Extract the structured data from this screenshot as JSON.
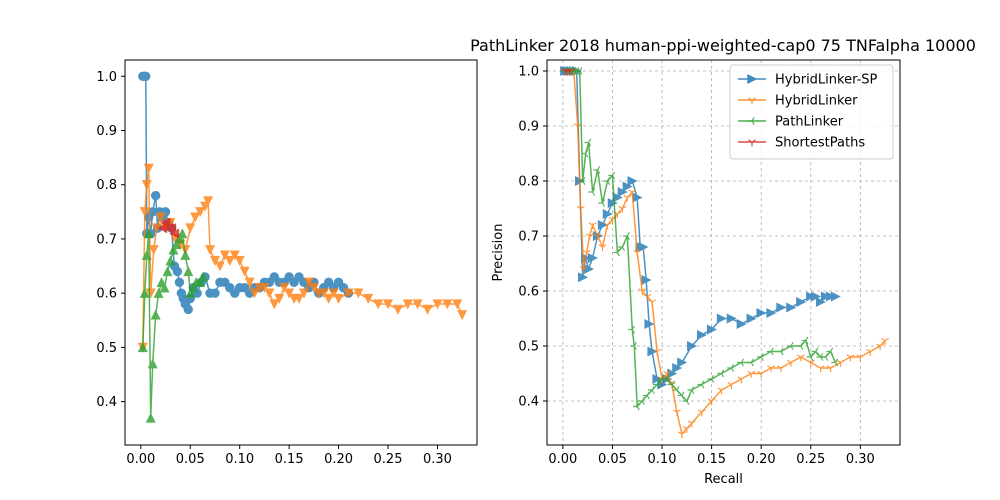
{
  "figure": {
    "title": "PathLinker 2018 human-ppi-weighted-cap0 75 TNFalpha 10000"
  },
  "chart_data": [
    {
      "type": "line",
      "title": "",
      "xlabel": "",
      "ylabel": "",
      "xlim": [
        -0.016,
        0.34
      ],
      "ylim": [
        0.32,
        1.03
      ],
      "xticks": [
        "0.00",
        "0.05",
        "0.10",
        "0.15",
        "0.20",
        "0.25",
        "0.30"
      ],
      "xtick_values": [
        0,
        0.05,
        0.1,
        0.15,
        0.2,
        0.25,
        0.3
      ],
      "yticks": [
        "0.4",
        "0.5",
        "0.6",
        "0.7",
        "0.8",
        "0.9",
        "1.0"
      ],
      "ytick_values": [
        0.4,
        0.5,
        0.6,
        0.7,
        0.8,
        0.9,
        1.0
      ],
      "grid": false,
      "legend": "none",
      "series": [
        {
          "color": "#1f77b4",
          "marker": "circle",
          "x": [
            0.002,
            0.004,
            0.005,
            0.006,
            0.008,
            0.01,
            0.012,
            0.015,
            0.017,
            0.019,
            0.022,
            0.025,
            0.028,
            0.031,
            0.034,
            0.037,
            0.039,
            0.041,
            0.043,
            0.045,
            0.048,
            0.05,
            0.053,
            0.057,
            0.061,
            0.065,
            0.07,
            0.075,
            0.08,
            0.085,
            0.09,
            0.095,
            0.1,
            0.105,
            0.11,
            0.115,
            0.12,
            0.125,
            0.13,
            0.135,
            0.14,
            0.145,
            0.15,
            0.155,
            0.16,
            0.165,
            0.17,
            0.175,
            0.18,
            0.185,
            0.19,
            0.195,
            0.2,
            0.205,
            0.21
          ],
          "y": [
            1.0,
            1.0,
            1.0,
            0.71,
            0.74,
            0.71,
            0.75,
            0.78,
            0.72,
            0.75,
            0.74,
            0.75,
            0.73,
            0.72,
            0.65,
            0.64,
            0.62,
            0.6,
            0.59,
            0.58,
            0.57,
            0.59,
            0.61,
            0.6,
            0.62,
            0.63,
            0.6,
            0.6,
            0.62,
            0.62,
            0.61,
            0.6,
            0.61,
            0.61,
            0.6,
            0.61,
            0.61,
            0.62,
            0.62,
            0.63,
            0.62,
            0.62,
            0.63,
            0.62,
            0.63,
            0.62,
            0.61,
            0.62,
            0.6,
            0.61,
            0.62,
            0.61,
            0.62,
            0.61,
            0.6
          ]
        },
        {
          "color": "#ff7f0e",
          "marker": "triangle_down",
          "x": [
            0.002,
            0.004,
            0.006,
            0.008,
            0.01,
            0.013,
            0.016,
            0.02,
            0.025,
            0.03,
            0.035,
            0.04,
            0.045,
            0.05,
            0.055,
            0.06,
            0.065,
            0.068,
            0.07,
            0.075,
            0.08,
            0.085,
            0.09,
            0.095,
            0.1,
            0.105,
            0.11,
            0.115,
            0.12,
            0.125,
            0.13,
            0.135,
            0.14,
            0.145,
            0.15,
            0.155,
            0.16,
            0.165,
            0.17,
            0.175,
            0.18,
            0.185,
            0.19,
            0.195,
            0.2,
            0.21,
            0.22,
            0.23,
            0.24,
            0.25,
            0.26,
            0.27,
            0.28,
            0.29,
            0.3,
            0.31,
            0.32,
            0.325
          ],
          "y": [
            0.5,
            0.75,
            0.8,
            0.83,
            0.6,
            0.68,
            0.72,
            0.74,
            0.72,
            0.73,
            0.7,
            0.69,
            0.68,
            0.72,
            0.74,
            0.75,
            0.76,
            0.77,
            0.68,
            0.66,
            0.65,
            0.67,
            0.66,
            0.67,
            0.66,
            0.64,
            0.62,
            0.6,
            0.61,
            0.61,
            0.6,
            0.58,
            0.59,
            0.61,
            0.6,
            0.59,
            0.59,
            0.6,
            0.62,
            0.61,
            0.6,
            0.6,
            0.59,
            0.6,
            0.59,
            0.6,
            0.6,
            0.59,
            0.58,
            0.58,
            0.57,
            0.58,
            0.58,
            0.57,
            0.58,
            0.58,
            0.58,
            0.56
          ]
        },
        {
          "color": "#2ca02c",
          "marker": "triangle_up",
          "x": [
            0.002,
            0.004,
            0.006,
            0.008,
            0.01,
            0.012,
            0.015,
            0.018,
            0.021,
            0.024,
            0.027,
            0.03,
            0.033,
            0.036,
            0.039,
            0.042,
            0.045,
            0.048,
            0.05,
            0.053,
            0.056,
            0.06,
            0.063
          ],
          "y": [
            0.5,
            0.6,
            0.67,
            0.71,
            0.37,
            0.47,
            0.56,
            0.6,
            0.62,
            0.61,
            0.64,
            0.66,
            0.68,
            0.69,
            0.7,
            0.71,
            0.67,
            0.64,
            0.6,
            0.61,
            0.62,
            0.62,
            0.63
          ]
        },
        {
          "color": "#d62728",
          "marker": "triangle_left",
          "x": [
            0.022,
            0.025,
            0.028,
            0.031,
            0.034
          ],
          "y": [
            0.72,
            0.73,
            0.72,
            0.72,
            0.71
          ]
        }
      ]
    },
    {
      "type": "line",
      "title": "",
      "xlabel": "Recall",
      "ylabel": "Precision",
      "xlim": [
        -0.016,
        0.34
      ],
      "ylim": [
        0.32,
        1.02
      ],
      "xticks": [
        "0.00",
        "0.05",
        "0.10",
        "0.15",
        "0.20",
        "0.25",
        "0.30"
      ],
      "xtick_values": [
        0,
        0.05,
        0.1,
        0.15,
        0.2,
        0.25,
        0.3
      ],
      "yticks": [
        "0.4",
        "0.5",
        "0.6",
        "0.7",
        "0.8",
        "0.9",
        "1.0"
      ],
      "ytick_values": [
        0.4,
        0.5,
        0.6,
        0.7,
        0.8,
        0.9,
        1.0
      ],
      "grid": true,
      "legend": "top-right",
      "series": [
        {
          "name": "HybridLinker-SP",
          "color": "#1f77b4",
          "marker": "triangle_right",
          "x": [
            0.002,
            0.005,
            0.008,
            0.011,
            0.014,
            0.017,
            0.02,
            0.023,
            0.026,
            0.03,
            0.035,
            0.04,
            0.045,
            0.05,
            0.055,
            0.06,
            0.065,
            0.07,
            0.075,
            0.078,
            0.081,
            0.084,
            0.087,
            0.09,
            0.095,
            0.1,
            0.105,
            0.11,
            0.115,
            0.12,
            0.13,
            0.14,
            0.15,
            0.16,
            0.17,
            0.18,
            0.19,
            0.2,
            0.21,
            0.22,
            0.23,
            0.24,
            0.25,
            0.255,
            0.26,
            0.265,
            0.27,
            0.275
          ],
          "y": [
            1.0,
            1.0,
            1.0,
            1.0,
            1.0,
            0.8,
            0.625,
            0.66,
            0.64,
            0.66,
            0.7,
            0.72,
            0.74,
            0.76,
            0.77,
            0.78,
            0.79,
            0.8,
            0.77,
            0.68,
            0.68,
            0.62,
            0.54,
            0.49,
            0.44,
            0.43,
            0.44,
            0.45,
            0.46,
            0.47,
            0.5,
            0.52,
            0.53,
            0.55,
            0.55,
            0.54,
            0.55,
            0.56,
            0.56,
            0.57,
            0.57,
            0.58,
            0.59,
            0.59,
            0.58,
            0.59,
            0.59,
            0.59
          ]
        },
        {
          "name": "HybridLinker",
          "color": "#ff7f0e",
          "marker": "tri_down",
          "x": [
            0.002,
            0.005,
            0.008,
            0.011,
            0.015,
            0.018,
            0.021,
            0.024,
            0.027,
            0.03,
            0.035,
            0.04,
            0.045,
            0.05,
            0.055,
            0.06,
            0.065,
            0.07,
            0.075,
            0.08,
            0.085,
            0.09,
            0.095,
            0.1,
            0.105,
            0.11,
            0.115,
            0.12,
            0.125,
            0.13,
            0.14,
            0.15,
            0.16,
            0.17,
            0.18,
            0.19,
            0.2,
            0.21,
            0.22,
            0.23,
            0.24,
            0.25,
            0.26,
            0.27,
            0.28,
            0.29,
            0.3,
            0.31,
            0.32,
            0.325
          ],
          "y": [
            1.0,
            1.0,
            1.0,
            1.0,
            0.9,
            0.75,
            0.64,
            0.67,
            0.7,
            0.72,
            0.7,
            0.68,
            0.72,
            0.73,
            0.74,
            0.75,
            0.77,
            0.78,
            0.67,
            0.6,
            0.59,
            0.58,
            0.49,
            0.44,
            0.45,
            0.43,
            0.38,
            0.34,
            0.35,
            0.36,
            0.38,
            0.4,
            0.42,
            0.43,
            0.44,
            0.45,
            0.45,
            0.46,
            0.46,
            0.47,
            0.48,
            0.47,
            0.46,
            0.46,
            0.47,
            0.48,
            0.48,
            0.49,
            0.5,
            0.51
          ]
        },
        {
          "name": "PathLinker",
          "color": "#2ca02c",
          "marker": "tri_left",
          "x": [
            0.002,
            0.005,
            0.008,
            0.011,
            0.014,
            0.017,
            0.02,
            0.023,
            0.026,
            0.03,
            0.035,
            0.04,
            0.045,
            0.05,
            0.055,
            0.06,
            0.065,
            0.07,
            0.072,
            0.075,
            0.08,
            0.085,
            0.09,
            0.095,
            0.1,
            0.105,
            0.11,
            0.115,
            0.12,
            0.125,
            0.13,
            0.14,
            0.15,
            0.16,
            0.17,
            0.18,
            0.19,
            0.2,
            0.21,
            0.22,
            0.23,
            0.24,
            0.245,
            0.25,
            0.255,
            0.26,
            0.265,
            0.27,
            0.275
          ],
          "y": [
            1.0,
            1.0,
            1.0,
            1.0,
            1.0,
            1.0,
            0.8,
            0.85,
            0.87,
            0.78,
            0.82,
            0.76,
            0.8,
            0.81,
            0.67,
            0.68,
            0.7,
            0.53,
            0.5,
            0.39,
            0.4,
            0.41,
            0.42,
            0.43,
            0.44,
            0.44,
            0.43,
            0.42,
            0.41,
            0.4,
            0.42,
            0.43,
            0.44,
            0.45,
            0.46,
            0.47,
            0.47,
            0.48,
            0.49,
            0.49,
            0.5,
            0.5,
            0.51,
            0.48,
            0.49,
            0.48,
            0.48,
            0.49,
            0.47
          ]
        },
        {
          "name": "ShortestPaths",
          "color": "#d62728",
          "marker": "tri_right",
          "x": [
            0.002,
            0.005,
            0.008
          ],
          "y": [
            1.0,
            1.0,
            1.0
          ]
        }
      ]
    }
  ]
}
